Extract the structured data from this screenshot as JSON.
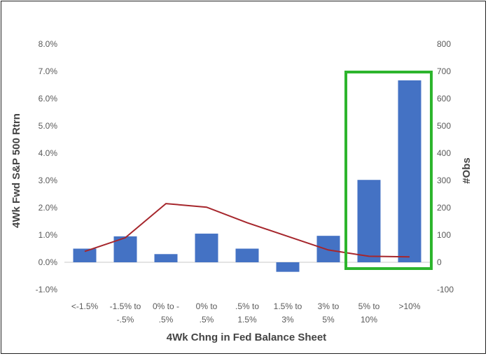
{
  "chart_data": {
    "type": "bar",
    "title": "",
    "xlabel": "4Wk Chng in Fed Balance Sheet",
    "ylabel": "4Wk Fwd S&P 500 Rtrn",
    "y2label": "#Obs",
    "categories": [
      [
        "<-1.5%"
      ],
      [
        "-1.5% to",
        "-.5%"
      ],
      [
        "0% to -",
        ".5%"
      ],
      [
        "0% to",
        ".5%"
      ],
      [
        ".5% to",
        "1.5%"
      ],
      [
        "1.5% to",
        "3%"
      ],
      [
        "3% to",
        "5%"
      ],
      [
        "5% to",
        "10%"
      ],
      [
        ">10%"
      ]
    ],
    "series": [
      {
        "type": "bar",
        "axis": "left",
        "values": [
          0.5,
          0.95,
          0.3,
          1.05,
          0.5,
          -0.35,
          0.97,
          3.02,
          6.67
        ],
        "color": "#4472C4"
      },
      {
        "type": "line",
        "axis": "right",
        "values": [
          40,
          90,
          215,
          202,
          145,
          95,
          45,
          22,
          20
        ],
        "color": "#A6262C"
      }
    ],
    "ylim": [
      -1.0,
      8.0
    ],
    "yticks": [
      -1.0,
      0.0,
      1.0,
      2.0,
      3.0,
      4.0,
      5.0,
      6.0,
      7.0,
      8.0
    ],
    "y2lim": [
      -100,
      800
    ],
    "y2ticks": [
      -100,
      0,
      100,
      200,
      300,
      400,
      500,
      600,
      700,
      800
    ],
    "grid": false,
    "legend": "none",
    "highlight": {
      "from_category": 7,
      "to_category": 8,
      "color": "#2DB52D"
    }
  }
}
